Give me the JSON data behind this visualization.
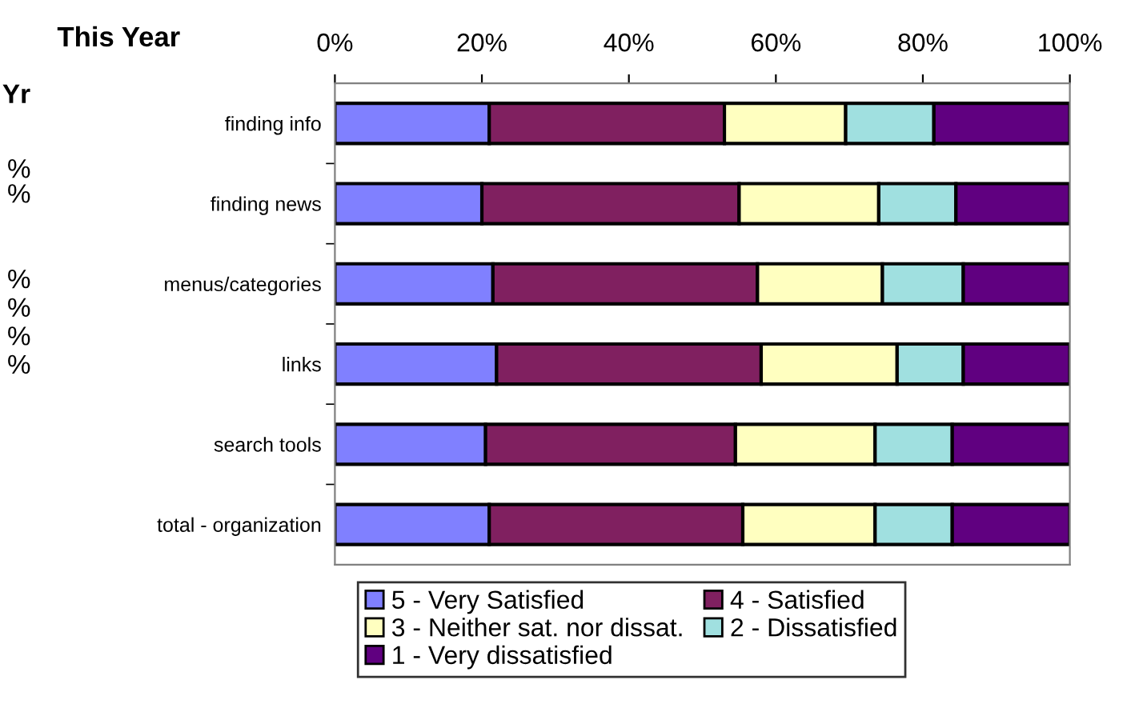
{
  "chart_data": {
    "type": "bar",
    "orientation": "horizontal",
    "stacked": true,
    "title": "This Year",
    "categories": [
      "finding info",
      "finding news",
      "menus/categories",
      "links",
      "search tools",
      "total - organization"
    ],
    "series": [
      {
        "name": "5 - Very Satisfied",
        "color": "#8080ff",
        "values": [
          21,
          20,
          21.5,
          22,
          20.5,
          21
        ]
      },
      {
        "name": "4 - Satisfied",
        "color": "#802060",
        "values": [
          32,
          35,
          36,
          36,
          34,
          34.5
        ]
      },
      {
        "name": "3 - Neither sat. nor dissat.",
        "color": "#ffffc0",
        "values": [
          16.5,
          19,
          17,
          18.5,
          19,
          18
        ]
      },
      {
        "name": "2 - Dissatisfied",
        "color": "#a0e0e0",
        "values": [
          12,
          10.5,
          11,
          9,
          10.5,
          10.5
        ]
      },
      {
        "name": "1 - Very dissatisfied",
        "color": "#600080",
        "values": [
          18.5,
          15.5,
          14.5,
          14.5,
          16,
          16
        ]
      }
    ],
    "xlim": [
      0,
      100
    ],
    "xticks": [
      {
        "value": 0,
        "label": "0%"
      },
      {
        "value": 20,
        "label": "20%"
      },
      {
        "value": 40,
        "label": "40%"
      },
      {
        "value": 60,
        "label": "60%"
      },
      {
        "value": 80,
        "label": "80%"
      },
      {
        "value": 100,
        "label": "100%"
      }
    ],
    "legend": "bottom",
    "grid": false,
    "annotations": [
      "Yr",
      "%",
      "%",
      "%",
      "%",
      "%",
      "%"
    ]
  }
}
